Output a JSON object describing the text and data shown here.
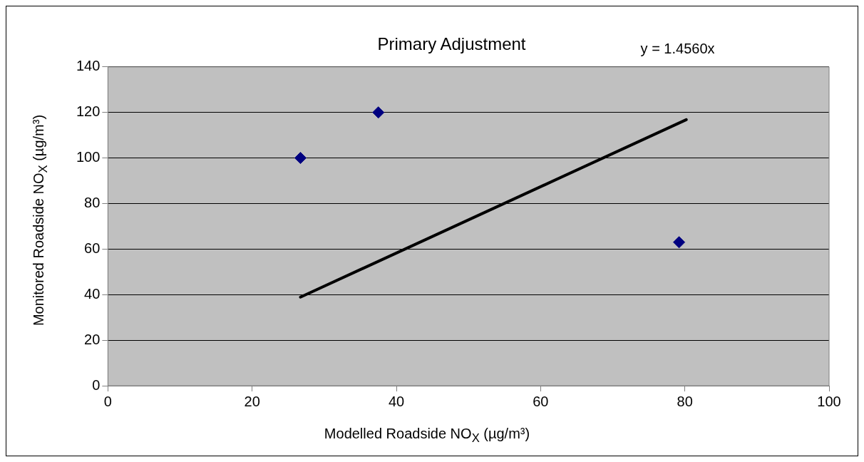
{
  "chart_data": {
    "type": "scatter",
    "title": "Primary Adjustment",
    "xlabel": "Modelled  Roadside NO$_{X}$ (µg/m³)",
    "ylabel": "Monitored Roadside NO$_{X}$ (µg/m³)",
    "annotations": [
      "y = 1.4560x"
    ],
    "series": [
      {
        "type": "scatter",
        "color": "#000080",
        "marker": "diamond",
        "x": [
          26.7,
          37.5,
          79.2
        ],
        "values": [
          100,
          120,
          63
        ]
      },
      {
        "type": "line",
        "color": "#000000",
        "marker": "none",
        "x": [
          26.7,
          80.2
        ],
        "values": [
          38.9,
          116.8
        ]
      }
    ],
    "xlim": [
      0,
      100
    ],
    "xticks": [
      0,
      20,
      40,
      60,
      80,
      100
    ],
    "ylim": [
      0,
      140
    ],
    "yticks": [
      0,
      20,
      40,
      60,
      80,
      100,
      120,
      140
    ],
    "grid": "y",
    "legend": false
  }
}
